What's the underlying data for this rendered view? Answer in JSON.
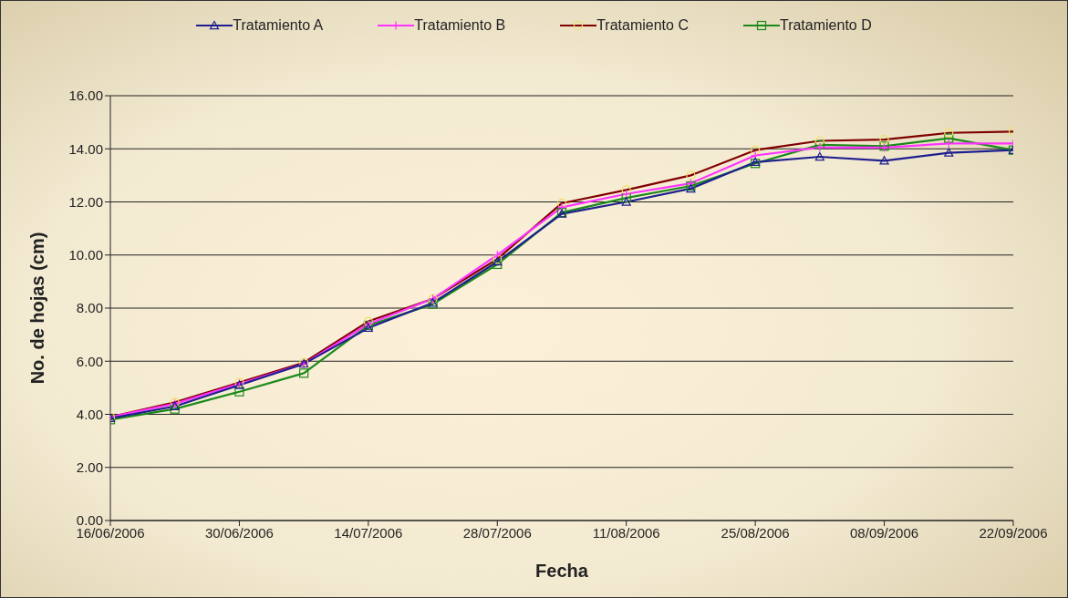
{
  "chart_data": {
    "type": "line",
    "xlabel": "Fecha",
    "ylabel": "No. de hojas (cm)",
    "x": [
      "2006-06-16",
      "2006-06-23",
      "2006-06-30",
      "2006-07-07",
      "2006-07-14",
      "2006-07-21",
      "2006-07-28",
      "2006-08-04",
      "2006-08-11",
      "2006-08-18",
      "2006-08-25",
      "2006-09-01",
      "2006-09-08",
      "2006-09-15",
      "2006-09-22"
    ],
    "series": [
      {
        "name": "Tratamiento A",
        "color": "#1f1f8f",
        "marker": "triangle",
        "values": [
          3.85,
          4.3,
          5.1,
          5.9,
          7.25,
          8.2,
          9.75,
          11.55,
          12.0,
          12.5,
          13.5,
          13.7,
          13.55,
          13.85,
          13.95
        ]
      },
      {
        "name": "Tratamiento B",
        "color": "#ff33ff",
        "marker": "cross",
        "values": [
          3.9,
          4.4,
          5.15,
          5.9,
          7.4,
          8.35,
          10.0,
          11.8,
          12.3,
          12.7,
          13.75,
          14.05,
          14.05,
          14.2,
          14.2
        ]
      },
      {
        "name": "Tratamiento C",
        "color": "#800000",
        "marker": "circle",
        "values": [
          3.9,
          4.45,
          5.2,
          5.95,
          7.5,
          8.35,
          9.85,
          11.95,
          12.45,
          13.0,
          13.95,
          14.3,
          14.35,
          14.6,
          14.65
        ]
      },
      {
        "name": "Tratamiento D",
        "color": "#1a8a1a",
        "marker": "square",
        "values": [
          3.8,
          4.2,
          4.85,
          5.55,
          7.35,
          8.15,
          9.65,
          11.6,
          12.15,
          12.6,
          13.45,
          14.15,
          14.1,
          14.4,
          13.95
        ]
      }
    ],
    "xlim": [
      "2006-06-16",
      "2006-09-22"
    ],
    "xticks": [
      {
        "value": "2006-06-16",
        "label": "16/06/2006"
      },
      {
        "value": "2006-06-30",
        "label": "30/06/2006"
      },
      {
        "value": "2006-07-14",
        "label": "14/07/2006"
      },
      {
        "value": "2006-07-28",
        "label": "28/07/2006"
      },
      {
        "value": "2006-08-11",
        "label": "11/08/2006"
      },
      {
        "value": "2006-08-25",
        "label": "25/08/2006"
      },
      {
        "value": "2006-09-08",
        "label": "08/09/2006"
      },
      {
        "value": "2006-09-22",
        "label": "22/09/2006"
      }
    ],
    "ylim": [
      0,
      16
    ],
    "yticks": [
      {
        "value": 0,
        "label": "0.00"
      },
      {
        "value": 2,
        "label": "2.00"
      },
      {
        "value": 4,
        "label": "4.00"
      },
      {
        "value": 6,
        "label": "6.00"
      },
      {
        "value": 8,
        "label": "8.00"
      },
      {
        "value": 10,
        "label": "10.00"
      },
      {
        "value": 12,
        "label": "12.00"
      },
      {
        "value": 14,
        "label": "14.00"
      },
      {
        "value": 16,
        "label": "16.00"
      }
    ],
    "grid": "y",
    "legend": "top"
  }
}
